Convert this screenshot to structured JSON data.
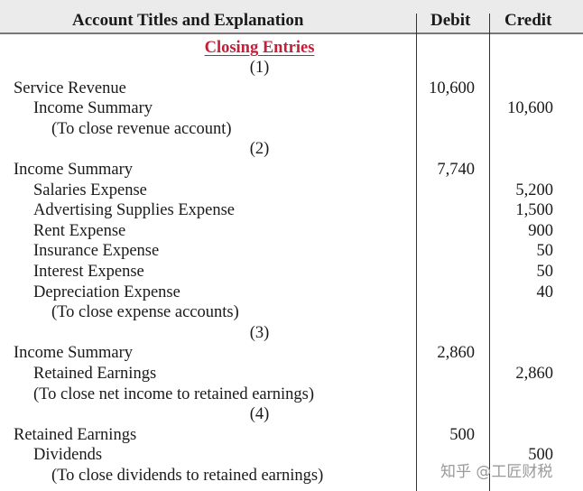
{
  "headers": {
    "account": "Account Titles and Explanation",
    "debit": "Debit",
    "credit": "Credit"
  },
  "title": "Closing Entries",
  "rows": [
    {
      "kind": "num",
      "text": "(1)"
    },
    {
      "kind": "entry",
      "indent": 0,
      "text": "Service Revenue",
      "debit": "10,600",
      "credit": ""
    },
    {
      "kind": "entry",
      "indent": 1,
      "text": "Income Summary",
      "debit": "",
      "credit": "10,600"
    },
    {
      "kind": "entry",
      "indent": 2,
      "text": "(To close revenue account)",
      "debit": "",
      "credit": ""
    },
    {
      "kind": "num",
      "text": "(2)"
    },
    {
      "kind": "entry",
      "indent": 0,
      "text": "Income Summary",
      "debit": "7,740",
      "credit": ""
    },
    {
      "kind": "entry",
      "indent": 1,
      "text": "Salaries Expense",
      "debit": "",
      "credit": "5,200"
    },
    {
      "kind": "entry",
      "indent": 1,
      "text": "Advertising Supplies Expense",
      "debit": "",
      "credit": "1,500"
    },
    {
      "kind": "entry",
      "indent": 1,
      "text": "Rent Expense",
      "debit": "",
      "credit": "900"
    },
    {
      "kind": "entry",
      "indent": 1,
      "text": "Insurance Expense",
      "debit": "",
      "credit": "50"
    },
    {
      "kind": "entry",
      "indent": 1,
      "text": "Interest Expense",
      "debit": "",
      "credit": "50"
    },
    {
      "kind": "entry",
      "indent": 1,
      "text": "Depreciation Expense",
      "debit": "",
      "credit": "40"
    },
    {
      "kind": "entry",
      "indent": 2,
      "text": "(To close expense accounts)",
      "debit": "",
      "credit": ""
    },
    {
      "kind": "num",
      "text": "(3)"
    },
    {
      "kind": "entry",
      "indent": 0,
      "text": "Income Summary",
      "debit": "2,860",
      "credit": ""
    },
    {
      "kind": "entry",
      "indent": 1,
      "text": "Retained Earnings",
      "debit": "",
      "credit": "2,860"
    },
    {
      "kind": "entry",
      "indent": 1,
      "text": "(To close net income to retained earnings)",
      "debit": "",
      "credit": ""
    },
    {
      "kind": "num",
      "text": "(4)"
    },
    {
      "kind": "entry",
      "indent": 0,
      "text": "Retained Earnings",
      "debit": "500",
      "credit": ""
    },
    {
      "kind": "entry",
      "indent": 1,
      "text": "Dividends",
      "debit": "",
      "credit": "500"
    },
    {
      "kind": "entry",
      "indent": 2,
      "text": "(To close dividends to retained earnings)",
      "debit": "",
      "credit": ""
    }
  ],
  "watermark": "知乎 @工匠财税"
}
